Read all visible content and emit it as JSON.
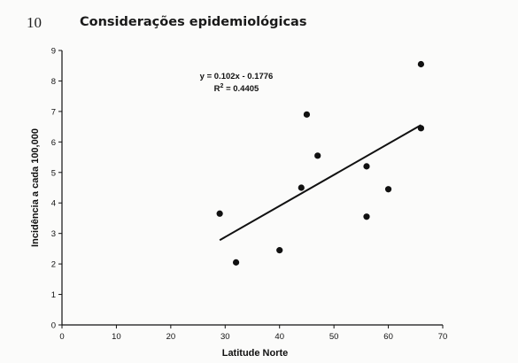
{
  "page": {
    "number": "10",
    "title": "Considerações epidemiológicas"
  },
  "chart_data": {
    "type": "scatter",
    "title": "",
    "xlabel": "Latitude Norte",
    "ylabel": "Incidência a cada 100,000",
    "xlim": [
      0,
      70
    ],
    "ylim": [
      0,
      9
    ],
    "x_ticks": [
      0,
      10,
      20,
      30,
      40,
      50,
      60,
      70
    ],
    "y_ticks": [
      0,
      1,
      2,
      3,
      4,
      5,
      6,
      7,
      8,
      9
    ],
    "grid": false,
    "legend": "none",
    "series": [
      {
        "points": [
          {
            "x": 29,
            "y": 3.65
          },
          {
            "x": 32,
            "y": 2.05
          },
          {
            "x": 40,
            "y": 2.45
          },
          {
            "x": 44,
            "y": 4.5
          },
          {
            "x": 45,
            "y": 6.9
          },
          {
            "x": 47,
            "y": 5.55
          },
          {
            "x": 56,
            "y": 5.2
          },
          {
            "x": 56,
            "y": 3.55
          },
          {
            "x": 60,
            "y": 4.45
          },
          {
            "x": 66,
            "y": 8.55
          },
          {
            "x": 66,
            "y": 6.45
          }
        ]
      }
    ],
    "trendline": {
      "slope": 0.102,
      "intercept": -0.1776,
      "x_range": [
        29,
        66
      ],
      "equation": "y = 0.102x - 0.1776",
      "r2_label": "R",
      "r2_sup": "2",
      "r2_value": " = 0.4405"
    },
    "colors": {
      "marker": "#111111",
      "line": "#111111",
      "axis": "#111111"
    }
  }
}
